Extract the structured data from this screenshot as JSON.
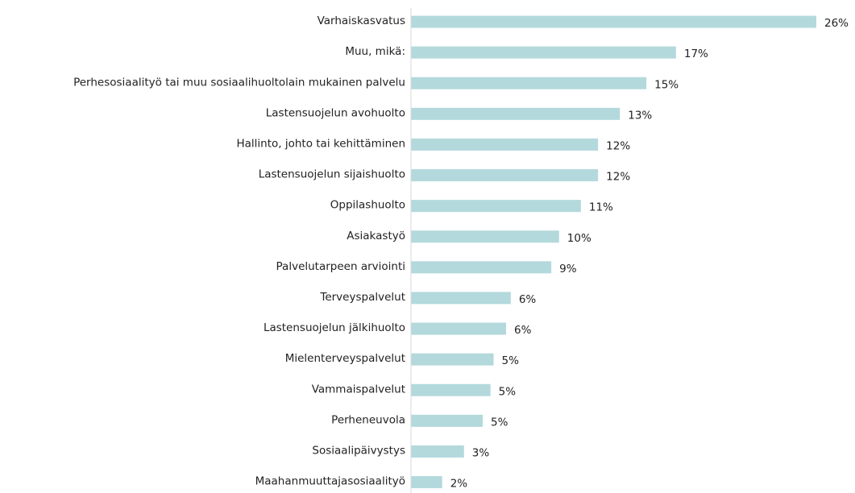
{
  "chart_data": {
    "type": "barh",
    "categories": [
      "Varhaiskasvatus",
      "Muu, mikä:",
      "Perhesosiaalityö tai muu sosiaalihuoltolain mukainen palvelu",
      "Lastensuojelun avohuolto",
      "Hallinto, johto tai kehittäminen",
      "Lastensuojelun sijaishuolto",
      "Oppilashuolto",
      "Asiakastyö",
      "Palvelutarpeen arviointi",
      "Terveyspalvelut",
      "Lastensuojelun jälkihuolto",
      "Mielenterveyspalvelut",
      "Vammaispalvelut",
      "Perheneuvola",
      "Sosiaalipäivystys",
      "Maahanmuuttajasosiaalityö"
    ],
    "values": [
      26,
      17,
      15.1,
      13.4,
      12,
      12,
      10.9,
      9.5,
      9,
      6.4,
      6.1,
      5.3,
      5.1,
      4.6,
      3.4,
      2
    ],
    "value_labels": [
      "26%",
      "17%",
      "15%",
      "13%",
      "12%",
      "12%",
      "11%",
      "10%",
      "9%",
      "6%",
      "6%",
      "5%",
      "5%",
      "5%",
      "3%",
      "2%"
    ],
    "color": "#b3d9dc"
  }
}
